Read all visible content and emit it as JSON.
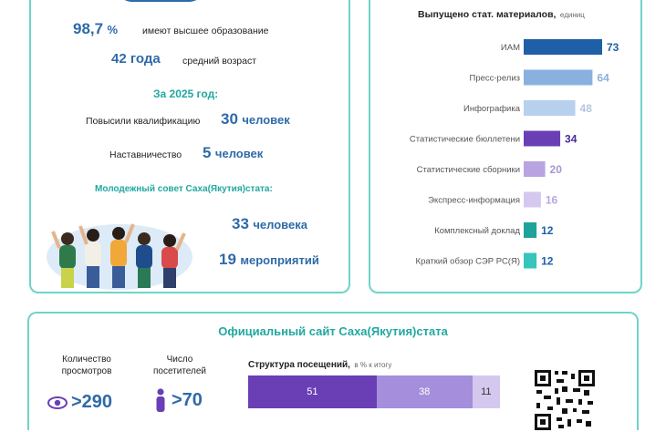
{
  "colors": {
    "panel_border": "#6fd3c9",
    "accent_blue": "#2e6aa8",
    "accent_teal": "#21a8a0",
    "bar_dark": "#1e5fa8",
    "bar_purple": "#6a3fb5"
  },
  "staff": {
    "edu_value": "98,7",
    "edu_unit": "%",
    "edu_text": "имеют высшее образование",
    "age_value": "42 года",
    "age_text": "средний возраст",
    "year_header": "За 2025 год:",
    "qual_text": "Повысили квалификацию",
    "qual_value": "30",
    "qual_unit": "человек",
    "mentor_text": "Наставничество",
    "mentor_value": "5",
    "mentor_unit": "человек",
    "youth_header": "Молодежный совет Саха(Якутия)стата:",
    "youth_people_value": "33",
    "youth_people_unit": "человека",
    "youth_events_value": "19",
    "youth_events_unit": "мероприятий"
  },
  "chart_data": {
    "type": "bar",
    "title": "Выпущено стат. материалов,",
    "unit": "единиц",
    "categories": [
      "ИАМ",
      "Пресс-релиз",
      "Инфографика",
      "Статистические бюллетени",
      "Статистические сборники",
      "Экспресс-информация",
      "Комплексный доклад",
      "Краткий обзор СЭР РС(Я)"
    ],
    "values": [
      73,
      64,
      48,
      34,
      20,
      16,
      12,
      12
    ],
    "colors": [
      "#1e5fa8",
      "#8ab0e0",
      "#b7d0ee",
      "#6a3fb5",
      "#b9a3e0",
      "#d4c8ef",
      "#1ea39a",
      "#36c4bb"
    ],
    "value_colors": [
      "#1e5fa8",
      "#8ab0e0",
      "#b7c6dd",
      "#4a2a9a",
      "#a894d6",
      "#b6a8dc",
      "#1e5fa8",
      "#1e5fa8"
    ]
  },
  "site": {
    "title": "Официальный сайт Саха(Якутия)стата",
    "views_label_1": "Количество",
    "views_label_2": "просмотров",
    "views_value": ">290",
    "visitors_label_1": "Число",
    "visitors_label_2": "посетителей",
    "visitors_value": ">70",
    "structure_title": "Структура посещений,",
    "structure_unit": "в % к итогу",
    "structure": [
      {
        "value": 51,
        "label": "51",
        "color": "#6a3fb5"
      },
      {
        "value": 38,
        "label": "38",
        "color": "#a58fdc"
      },
      {
        "value": 11,
        "label": "11",
        "color": "#d4c8ef"
      }
    ]
  }
}
